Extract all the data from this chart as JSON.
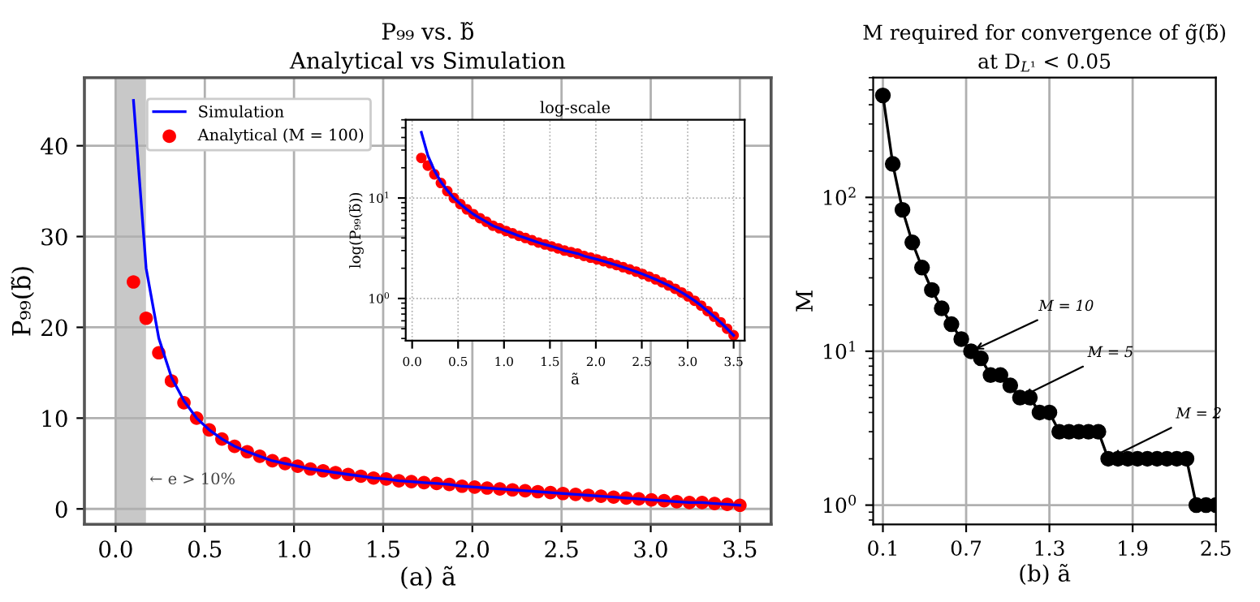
{
  "chart_data": [
    {
      "type": "line",
      "title": "P₉₉ vs. b̃",
      "subtitle": "Analytical vs Simulation",
      "xlabel": "(a) ã",
      "ylabel": "P₉₉(b̃)",
      "x": [
        0.1,
        0.171,
        0.242,
        0.313,
        0.383,
        0.454,
        0.525,
        0.596,
        0.667,
        0.738,
        0.808,
        0.879,
        0.95,
        1.021,
        1.092,
        1.163,
        1.233,
        1.304,
        1.375,
        1.446,
        1.517,
        1.588,
        1.658,
        1.729,
        1.8,
        1.871,
        1.942,
        2.013,
        2.083,
        2.154,
        2.225,
        2.296,
        2.367,
        2.438,
        2.508,
        2.579,
        2.65,
        2.721,
        2.792,
        2.863,
        2.933,
        3.004,
        3.075,
        3.146,
        3.217,
        3.288,
        3.358,
        3.429,
        3.5
      ],
      "series": [
        {
          "name": "Simulation",
          "color": "#0000ff",
          "values": [
            45,
            26.5,
            18.8,
            14.5,
            11.9,
            10.0,
            8.7,
            7.7,
            6.9,
            6.3,
            5.8,
            5.3,
            5.0,
            4.7,
            4.4,
            4.2,
            4.0,
            3.8,
            3.6,
            3.4,
            3.3,
            3.1,
            3.0,
            2.9,
            2.8,
            2.7,
            2.5,
            2.4,
            2.3,
            2.2,
            2.1,
            2.0,
            1.9,
            1.8,
            1.7,
            1.6,
            1.5,
            1.4,
            1.3,
            1.2,
            1.1,
            1.0,
            0.9,
            0.8,
            0.7,
            0.7,
            0.6,
            0.5,
            0.4
          ]
        },
        {
          "name": "Analytical (M = 100)",
          "type": "scatter",
          "color": "#ff0000",
          "marker": "circle",
          "values": [
            25,
            21,
            17.2,
            14.1,
            11.7,
            10.0,
            8.7,
            7.7,
            6.9,
            6.3,
            5.8,
            5.3,
            5.0,
            4.7,
            4.4,
            4.2,
            4.0,
            3.8,
            3.6,
            3.4,
            3.3,
            3.1,
            3.0,
            2.9,
            2.8,
            2.7,
            2.5,
            2.4,
            2.3,
            2.2,
            2.1,
            2.0,
            1.9,
            1.8,
            1.7,
            1.6,
            1.5,
            1.4,
            1.3,
            1.2,
            1.1,
            1.0,
            0.9,
            0.8,
            0.7,
            0.7,
            0.6,
            0.5,
            0.4
          ]
        }
      ],
      "xlim": [
        -0.175,
        3.675
      ],
      "xticks": [
        {
          "value": 0,
          "label": "0.0"
        },
        0.5,
        {
          "value": 1,
          "label": "1.0"
        },
        1.5,
        {
          "value": 2,
          "label": "2.0"
        },
        2.5,
        {
          "value": 3,
          "label": "3.0"
        },
        3.5
      ],
      "ylim": [
        -1.7,
        47.5
      ],
      "yticks": [
        0,
        10,
        20,
        30,
        40
      ],
      "bands": [
        {
          "axis": "x",
          "from": 0,
          "to": 0.17,
          "label": "← e > 10%",
          "color": "#c8c8c8"
        }
      ],
      "grid": true,
      "legend": "top left"
    },
    {
      "type": "line",
      "title": "log-scale",
      "xlabel": "ã",
      "ylabel": "log(P₉₉(b̃))",
      "x": [
        0.1,
        0.171,
        0.242,
        0.313,
        0.383,
        0.454,
        0.525,
        0.596,
        0.667,
        0.738,
        0.808,
        0.879,
        0.95,
        1.021,
        1.092,
        1.163,
        1.233,
        1.304,
        1.375,
        1.446,
        1.517,
        1.588,
        1.658,
        1.729,
        1.8,
        1.871,
        1.942,
        2.013,
        2.083,
        2.154,
        2.225,
        2.296,
        2.367,
        2.438,
        2.508,
        2.579,
        2.65,
        2.721,
        2.792,
        2.863,
        2.933,
        3.004,
        3.075,
        3.146,
        3.217,
        3.288,
        3.358,
        3.429,
        3.5
      ],
      "series": [
        {
          "color": "#0000ff",
          "values": [
            45,
            26.5,
            18.8,
            14.5,
            11.9,
            10.0,
            8.7,
            7.7,
            6.9,
            6.3,
            5.8,
            5.3,
            5.0,
            4.7,
            4.45,
            4.2,
            4.0,
            3.8,
            3.6,
            3.45,
            3.3,
            3.15,
            3.0,
            2.9,
            2.8,
            2.65,
            2.55,
            2.45,
            2.35,
            2.25,
            2.15,
            2.05,
            1.95,
            1.85,
            1.75,
            1.65,
            1.55,
            1.45,
            1.35,
            1.25,
            1.15,
            1.05,
            0.95,
            0.85,
            0.75,
            0.66,
            0.58,
            0.5,
            0.43
          ]
        },
        {
          "type": "scatter",
          "color": "#ff0000",
          "marker": "circle",
          "values": [
            25,
            21,
            17.2,
            14.1,
            11.7,
            10.0,
            8.7,
            7.7,
            6.9,
            6.3,
            5.8,
            5.3,
            5.0,
            4.7,
            4.45,
            4.2,
            4.0,
            3.8,
            3.6,
            3.45,
            3.3,
            3.15,
            3.0,
            2.9,
            2.8,
            2.65,
            2.55,
            2.45,
            2.35,
            2.25,
            2.15,
            2.05,
            1.95,
            1.85,
            1.75,
            1.65,
            1.55,
            1.45,
            1.35,
            1.25,
            1.15,
            1.05,
            0.95,
            0.85,
            0.75,
            0.66,
            0.58,
            0.5,
            0.43
          ]
        }
      ],
      "log": "y",
      "xlim": [
        -0.07,
        3.62
      ],
      "xticks": [
        {
          "value": 0,
          "label": "0.0"
        },
        0.5,
        {
          "value": 1,
          "label": "1.0"
        },
        1.5,
        {
          "value": 2,
          "label": "2.0"
        },
        2.5,
        {
          "value": 3,
          "label": "3.0"
        },
        3.5
      ],
      "ylim": [
        0.38,
        60
      ],
      "yticks": [
        {
          "value": 1,
          "label": "10$^{0}$"
        },
        {
          "value": 10,
          "label": "10$^{1}$"
        }
      ],
      "grid": true
    },
    {
      "type": "line",
      "title": "M required for convergence of g̃(b̃)",
      "subtitle": "at D$_{L¹}$ < 0.05",
      "xlabel": "(b) ã",
      "ylabel": "M",
      "x": [
        0.1,
        0.171,
        0.241,
        0.312,
        0.382,
        0.453,
        0.524,
        0.594,
        0.665,
        0.735,
        0.806,
        0.876,
        0.947,
        1.018,
        1.088,
        1.159,
        1.229,
        1.3,
        1.371,
        1.441,
        1.512,
        1.582,
        1.653,
        1.724,
        1.794,
        1.865,
        1.935,
        2.006,
        2.076,
        2.147,
        2.218,
        2.288,
        2.359,
        2.429,
        2.5
      ],
      "series": [
        {
          "color": "#000000",
          "marker": "circle",
          "values": [
            460,
            165,
            83,
            51,
            35,
            25,
            19,
            15,
            12,
            10,
            9,
            7,
            7,
            6,
            5,
            5,
            4,
            4,
            3,
            3,
            3,
            3,
            3,
            2,
            2,
            2,
            2,
            2,
            2,
            2,
            2,
            2,
            1,
            1,
            1
          ]
        }
      ],
      "log": "y",
      "xlim": [
        0.03,
        2.5
      ],
      "xticks": [
        0.1,
        0.7,
        1.3,
        1.9,
        2.5
      ],
      "ylim": [
        0.75,
        600
      ],
      "yticks": [
        {
          "value": 1,
          "label": "10$^{0}$"
        },
        {
          "value": 10,
          "label": "10$^{1}$"
        },
        {
          "value": 100,
          "label": "10$^{2}$"
        }
      ],
      "annotations": [
        {
          "text": "M = 10",
          "x": 0.735,
          "y": 10
        },
        {
          "text": "M = 5",
          "x": 1.088,
          "y": 5
        },
        {
          "text": "M = 2",
          "x": 1.724,
          "y": 2
        }
      ],
      "grid": true
    }
  ]
}
